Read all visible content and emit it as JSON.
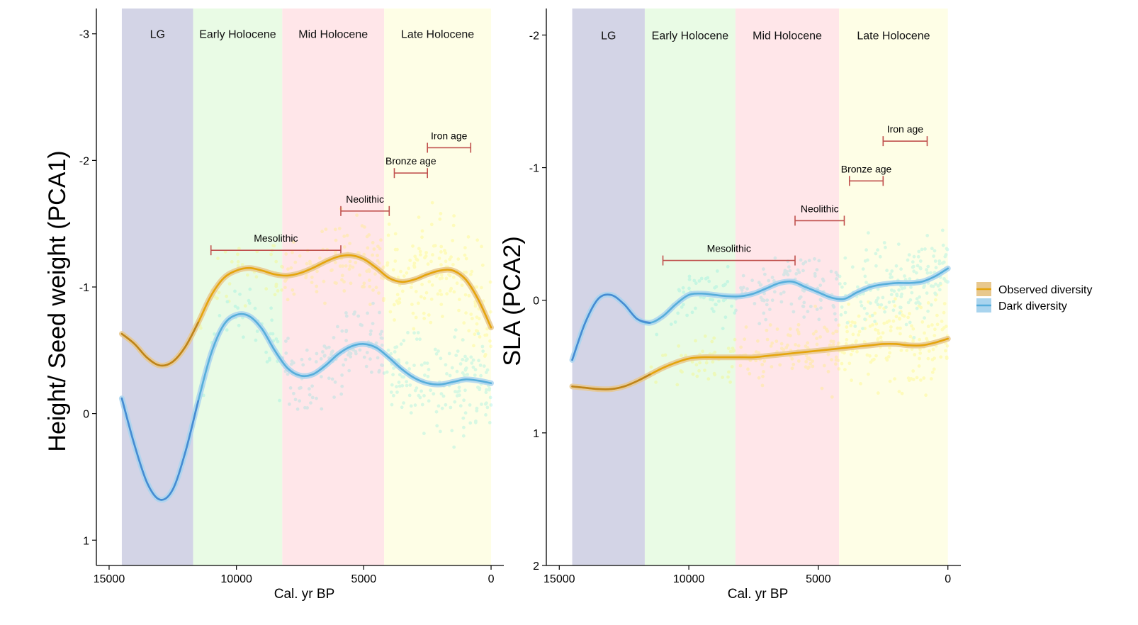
{
  "colors": {
    "observed": "#E5A40C",
    "observed_band": "#E8C88E",
    "dark": "#57AEDB",
    "dark_band": "#A9D4EE",
    "dark_lg": "#3F80D0",
    "observed_lg": "#B07A1E",
    "era_bar": "#C0504D",
    "LG": "#D3D4E6",
    "Early Holocene": "#E9FBE5",
    "Mid Holocene": "#FFE6E9",
    "Late Holocene": "#FEFEE6",
    "dots_observed": "#FFF200",
    "dots_dark": "#2FE0D8"
  },
  "legend": {
    "position": "right",
    "items": [
      {
        "key": "observed",
        "label": "Observed diversity"
      },
      {
        "key": "dark",
        "label": "Dark diversity"
      }
    ]
  },
  "chart_data": [
    {
      "type": "line",
      "xlabel": "Cal. yr BP",
      "ylabel": "Height/ Seed weight (PCA1)",
      "xlim": [
        15500,
        -500
      ],
      "ylim": [
        1.2,
        -3.2
      ],
      "y_reversed": true,
      "x_ticks": [
        15000,
        10000,
        5000,
        0
      ],
      "y_ticks": [
        -3,
        -2,
        -1,
        0,
        1
      ],
      "periods": [
        {
          "name": "LG",
          "start": 14500,
          "end": 11700
        },
        {
          "name": "Early Holocene",
          "start": 11700,
          "end": 8200
        },
        {
          "name": "Mid Holocene",
          "start": 8200,
          "end": 4200
        },
        {
          "name": "Late Holocene",
          "start": 4200,
          "end": 0
        }
      ],
      "eras": [
        {
          "name": "Mesolithic",
          "start": 11000,
          "end": 5900,
          "y": -1.29
        },
        {
          "name": "Neolithic",
          "start": 5900,
          "end": 4000,
          "y": -1.6
        },
        {
          "name": "Bronze age",
          "start": 3800,
          "end": 2500,
          "y": -1.9
        },
        {
          "name": "Iron age",
          "start": 2500,
          "end": 800,
          "y": -2.1
        }
      ],
      "series": [
        {
          "name": "Observed diversity",
          "key": "observed",
          "x": [
            14500,
            14000,
            13500,
            13000,
            12500,
            12000,
            11500,
            11000,
            10500,
            10000,
            9500,
            9000,
            8500,
            8000,
            7500,
            7000,
            6500,
            6000,
            5500,
            5000,
            4500,
            4000,
            3500,
            3000,
            2500,
            2000,
            1500,
            1000,
            500,
            0
          ],
          "y": [
            -0.63,
            -0.55,
            -0.44,
            -0.38,
            -0.41,
            -0.53,
            -0.72,
            -0.93,
            -1.07,
            -1.13,
            -1.15,
            -1.13,
            -1.1,
            -1.09,
            -1.11,
            -1.15,
            -1.2,
            -1.24,
            -1.25,
            -1.22,
            -1.15,
            -1.07,
            -1.04,
            -1.06,
            -1.1,
            -1.13,
            -1.13,
            -1.06,
            -0.9,
            -0.68
          ]
        },
        {
          "name": "Dark diversity",
          "key": "dark",
          "x": [
            14500,
            14000,
            13500,
            13000,
            12500,
            12000,
            11500,
            11000,
            10500,
            10000,
            9500,
            9000,
            8500,
            8000,
            7500,
            7000,
            6500,
            6000,
            5500,
            5000,
            4500,
            4000,
            3500,
            3000,
            2500,
            2000,
            1500,
            1000,
            500,
            0
          ],
          "y": [
            -0.12,
            0.25,
            0.55,
            0.68,
            0.6,
            0.3,
            -0.1,
            -0.47,
            -0.7,
            -0.78,
            -0.77,
            -0.67,
            -0.5,
            -0.36,
            -0.3,
            -0.31,
            -0.38,
            -0.47,
            -0.53,
            -0.55,
            -0.52,
            -0.44,
            -0.35,
            -0.28,
            -0.24,
            -0.23,
            -0.25,
            -0.27,
            -0.26,
            -0.24
          ]
        }
      ]
    },
    {
      "type": "line",
      "xlabel": "Cal. yr BP",
      "ylabel": "SLA (PCA2)",
      "xlim": [
        15500,
        -500
      ],
      "ylim": [
        2.0,
        -2.2
      ],
      "y_reversed": true,
      "x_ticks": [
        15000,
        10000,
        5000,
        0
      ],
      "y_ticks": [
        -2,
        -1,
        0,
        1,
        2
      ],
      "periods": [
        {
          "name": "LG",
          "start": 14500,
          "end": 11700
        },
        {
          "name": "Early Holocene",
          "start": 11700,
          "end": 8200
        },
        {
          "name": "Mid Holocene",
          "start": 8200,
          "end": 4200
        },
        {
          "name": "Late Holocene",
          "start": 4200,
          "end": 0
        }
      ],
      "eras": [
        {
          "name": "Mesolithic",
          "start": 11000,
          "end": 5900,
          "y": -0.3
        },
        {
          "name": "Neolithic",
          "start": 5900,
          "end": 4000,
          "y": -0.6
        },
        {
          "name": "Bronze age",
          "start": 3800,
          "end": 2500,
          "y": -0.9
        },
        {
          "name": "Iron age",
          "start": 2500,
          "end": 800,
          "y": -1.2
        }
      ],
      "series": [
        {
          "name": "Observed diversity",
          "key": "observed",
          "x": [
            14500,
            14000,
            13500,
            13000,
            12500,
            12000,
            11500,
            11000,
            10500,
            10000,
            9500,
            9000,
            8500,
            8000,
            7500,
            7000,
            6500,
            6000,
            5500,
            5000,
            4500,
            4000,
            3500,
            3000,
            2500,
            2000,
            1500,
            1000,
            500,
            0
          ],
          "y": [
            0.65,
            0.66,
            0.67,
            0.67,
            0.65,
            0.61,
            0.56,
            0.51,
            0.47,
            0.44,
            0.43,
            0.43,
            0.43,
            0.43,
            0.43,
            0.42,
            0.41,
            0.4,
            0.39,
            0.38,
            0.37,
            0.36,
            0.35,
            0.34,
            0.33,
            0.33,
            0.34,
            0.34,
            0.32,
            0.29
          ]
        },
        {
          "name": "Dark diversity",
          "key": "dark",
          "x": [
            14500,
            14000,
            13500,
            13000,
            12500,
            12000,
            11500,
            11000,
            10500,
            10000,
            9500,
            9000,
            8500,
            8000,
            7500,
            7000,
            6500,
            6000,
            5500,
            5000,
            4500,
            4000,
            3500,
            3000,
            2500,
            2000,
            1500,
            1000,
            500,
            0
          ],
          "y": [
            0.45,
            0.17,
            -0.01,
            -0.04,
            0.03,
            0.14,
            0.17,
            0.12,
            0.03,
            -0.04,
            -0.05,
            -0.04,
            -0.03,
            -0.03,
            -0.05,
            -0.09,
            -0.13,
            -0.14,
            -0.1,
            -0.06,
            -0.02,
            -0.01,
            -0.06,
            -0.1,
            -0.12,
            -0.13,
            -0.13,
            -0.14,
            -0.18,
            -0.24
          ]
        }
      ]
    }
  ]
}
